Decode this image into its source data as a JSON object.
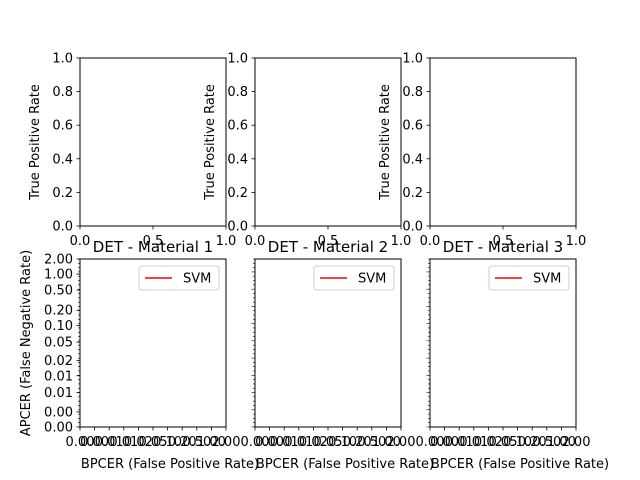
{
  "chart_data": [
    {
      "type": "line",
      "panel": "roc-1",
      "title": "",
      "xlabel": "",
      "ylabel": "True Positive Rate",
      "xlim": [
        0,
        1
      ],
      "ylim": [
        0,
        1
      ],
      "xticks": [
        "0.0",
        "0.5",
        "1.0"
      ],
      "yticks": [
        "0.0",
        "0.2",
        "0.4",
        "0.6",
        "0.8",
        "1.0"
      ],
      "grid": false,
      "series": []
    },
    {
      "type": "line",
      "panel": "roc-2",
      "title": "",
      "xlabel": "",
      "ylabel": "True Positive Rate",
      "xlim": [
        0,
        1
      ],
      "ylim": [
        0,
        1
      ],
      "xticks": [
        "0.0",
        "0.5",
        "1.0"
      ],
      "yticks": [
        "0.0",
        "0.2",
        "0.4",
        "0.6",
        "0.8",
        "1.0"
      ],
      "grid": false,
      "series": []
    },
    {
      "type": "line",
      "panel": "roc-3",
      "title": "",
      "xlabel": "",
      "ylabel": "True Positive Rate",
      "xlim": [
        0,
        1
      ],
      "ylim": [
        0,
        1
      ],
      "xticks": [
        "0.0",
        "0.5",
        "1.0"
      ],
      "yticks": [
        "0.0",
        "0.2",
        "0.4",
        "0.6",
        "0.8",
        "1.0"
      ],
      "grid": false,
      "series": []
    },
    {
      "type": "line",
      "panel": "det-1",
      "title": "DET - Material 1",
      "xlabel": "BPCER (False Positive Rate)",
      "ylabel": "APCER (False Negative Rate)",
      "xscale": "probit",
      "yscale": "probit",
      "xticks": [
        "0.00",
        "0.00",
        "0.01",
        "0.01",
        "0.02",
        "0.05",
        "0.10",
        "0.20",
        "0.50",
        "1.00",
        "2.00"
      ],
      "yticks": [
        "0.00",
        "0.00",
        "0.01",
        "0.01",
        "0.02",
        "0.05",
        "0.10",
        "0.20",
        "0.50",
        "1.00",
        "2.00"
      ],
      "show_yticks": true,
      "legend": "top-right",
      "grid": false,
      "series": [
        {
          "name": "SVM",
          "color": "#ff0000",
          "x": [],
          "y": []
        }
      ]
    },
    {
      "type": "line",
      "panel": "det-2",
      "title": "DET - Material 2",
      "xlabel": "BPCER (False Positive Rate)",
      "ylabel": "",
      "xscale": "probit",
      "yscale": "probit",
      "xticks": [
        "0.00",
        "0.00",
        "0.01",
        "0.01",
        "0.02",
        "0.05",
        "0.10",
        "0.20",
        "0.50",
        "1.00",
        "2.00"
      ],
      "yticks": [],
      "show_yticks": false,
      "legend": "top-right",
      "grid": false,
      "series": [
        {
          "name": "SVM",
          "color": "#ff0000",
          "x": [],
          "y": []
        }
      ]
    },
    {
      "type": "line",
      "panel": "det-3",
      "title": "DET - Material 3",
      "xlabel": "BPCER (False Positive Rate)",
      "ylabel": "",
      "xscale": "probit",
      "yscale": "probit",
      "xticks": [
        "0.00",
        "0.00",
        "0.01",
        "0.01",
        "0.02",
        "0.05",
        "0.10",
        "0.20",
        "0.50",
        "1.00",
        "2.00"
      ],
      "yticks": [],
      "show_yticks": false,
      "legend": "top-right",
      "grid": false,
      "series": [
        {
          "name": "SVM",
          "color": "#ff0000",
          "x": [],
          "y": []
        }
      ]
    }
  ]
}
